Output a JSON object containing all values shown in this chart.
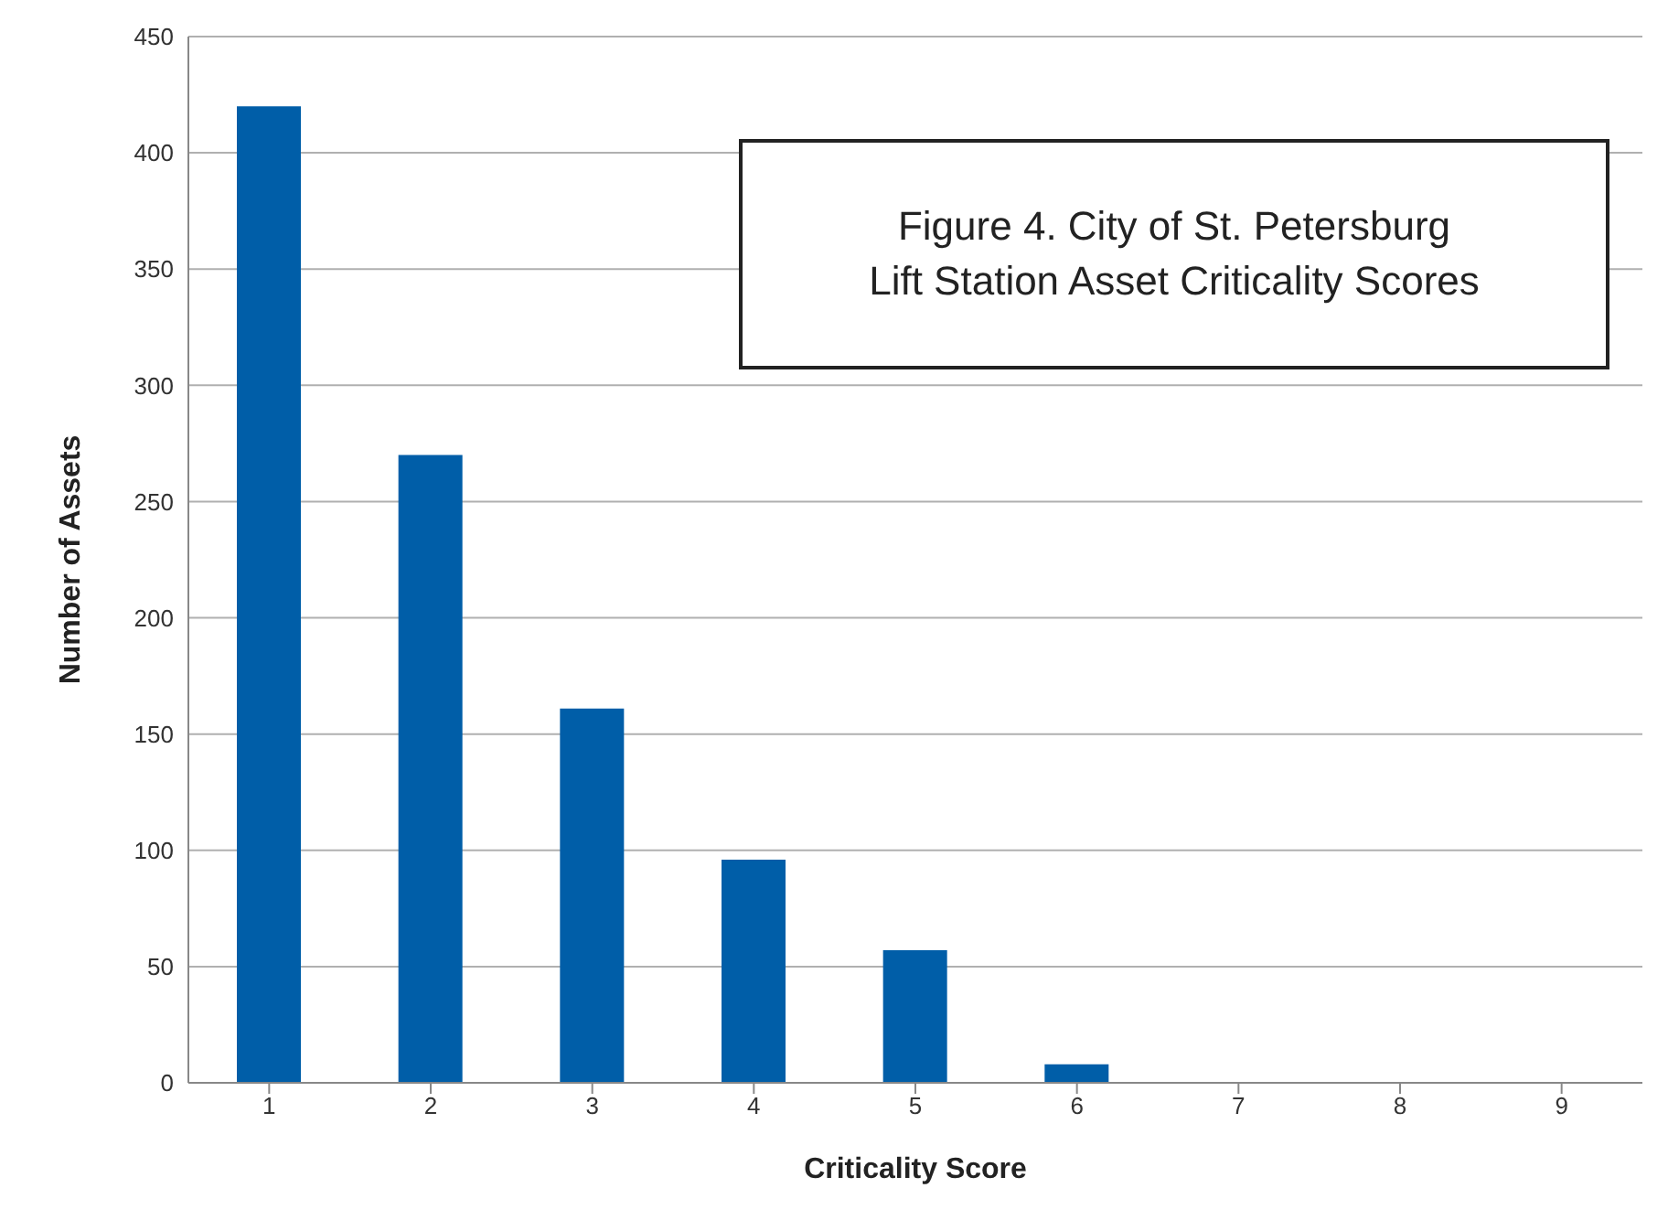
{
  "chart_data": {
    "type": "bar",
    "title": "Figure 4. City of St. Petersburg\nLift Station Asset Criticality Scores",
    "xlabel": "Criticality Score",
    "ylabel": "Number of Assets",
    "categories": [
      "1",
      "2",
      "3",
      "4",
      "5",
      "6",
      "7",
      "8",
      "9"
    ],
    "values": [
      420,
      270,
      161,
      96,
      57,
      8,
      0,
      0,
      0
    ],
    "color": "#005ea8",
    "ylim": [
      0,
      450
    ],
    "yticks": [
      0,
      50,
      100,
      150,
      200,
      250,
      300,
      350,
      400,
      450
    ],
    "grid": "y"
  }
}
